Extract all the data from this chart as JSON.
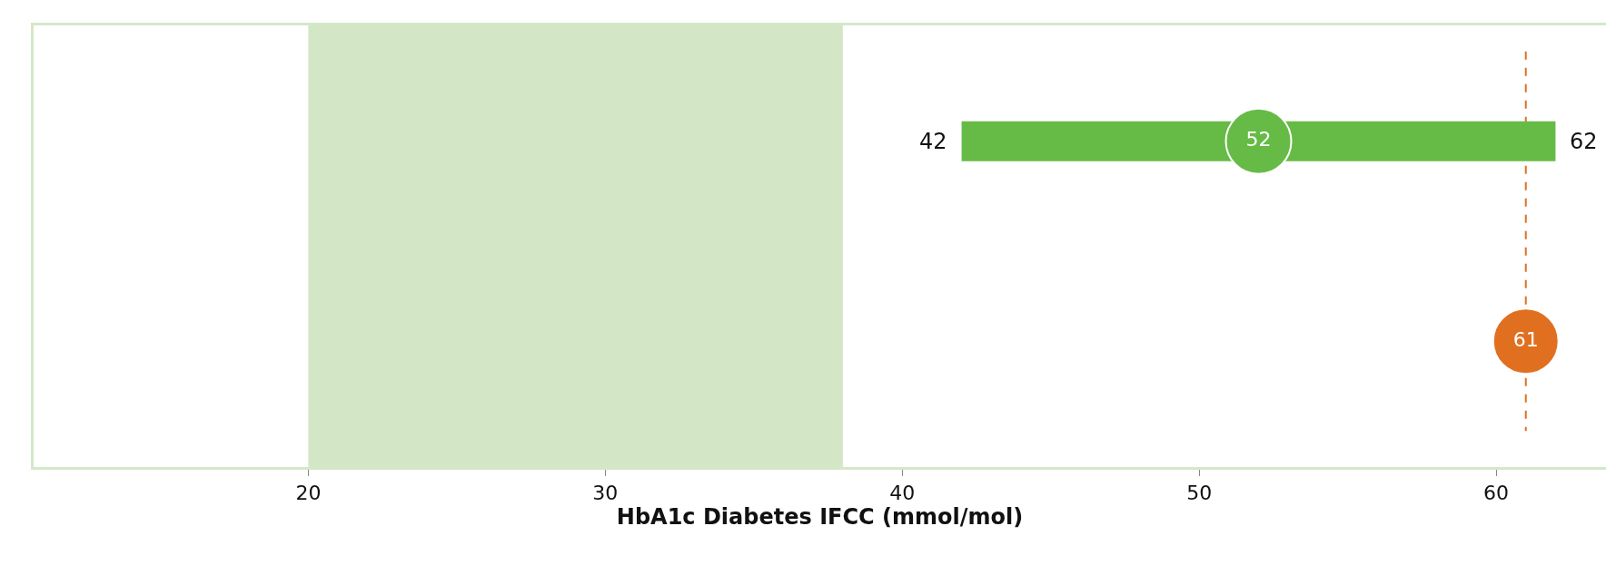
{
  "chart_data": {
    "type": "bar",
    "orientation": "horizontal",
    "xlabel": "HbA1c Diabetes IFCC (mmol/mol)",
    "categories": [
      null,
      null
    ],
    "series": [
      {
        "color": "#66bb46",
        "base": [
          42,
          null
        ],
        "values": [
          20,
          null
        ]
      },
      {
        "type": "scatter",
        "color": "#66bb46",
        "values": [
          52,
          null
        ],
        "value_labels": [
          "52",
          null
        ]
      },
      {
        "type": "scatter",
        "color": "#e07020",
        "values": [
          null,
          61
        ],
        "value_labels": [
          null,
          "61"
        ]
      }
    ],
    "annotations": [
      {
        "text": "42",
        "x": 42
      },
      {
        "text": "62",
        "x": 62
      }
    ],
    "bands": [
      {
        "axis": "x",
        "from": 20,
        "to": 38,
        "color": "#d3e6c6"
      }
    ],
    "ref_lines": [
      {
        "axis": "x",
        "value": 61,
        "color": "#e07020",
        "line_style": "dashed"
      }
    ],
    "xlim": [
      10.75,
      63.7
    ],
    "xticks": [
      20,
      30,
      40,
      50,
      60
    ],
    "grid": false,
    "marker": "circle",
    "tick_labels": "x"
  }
}
